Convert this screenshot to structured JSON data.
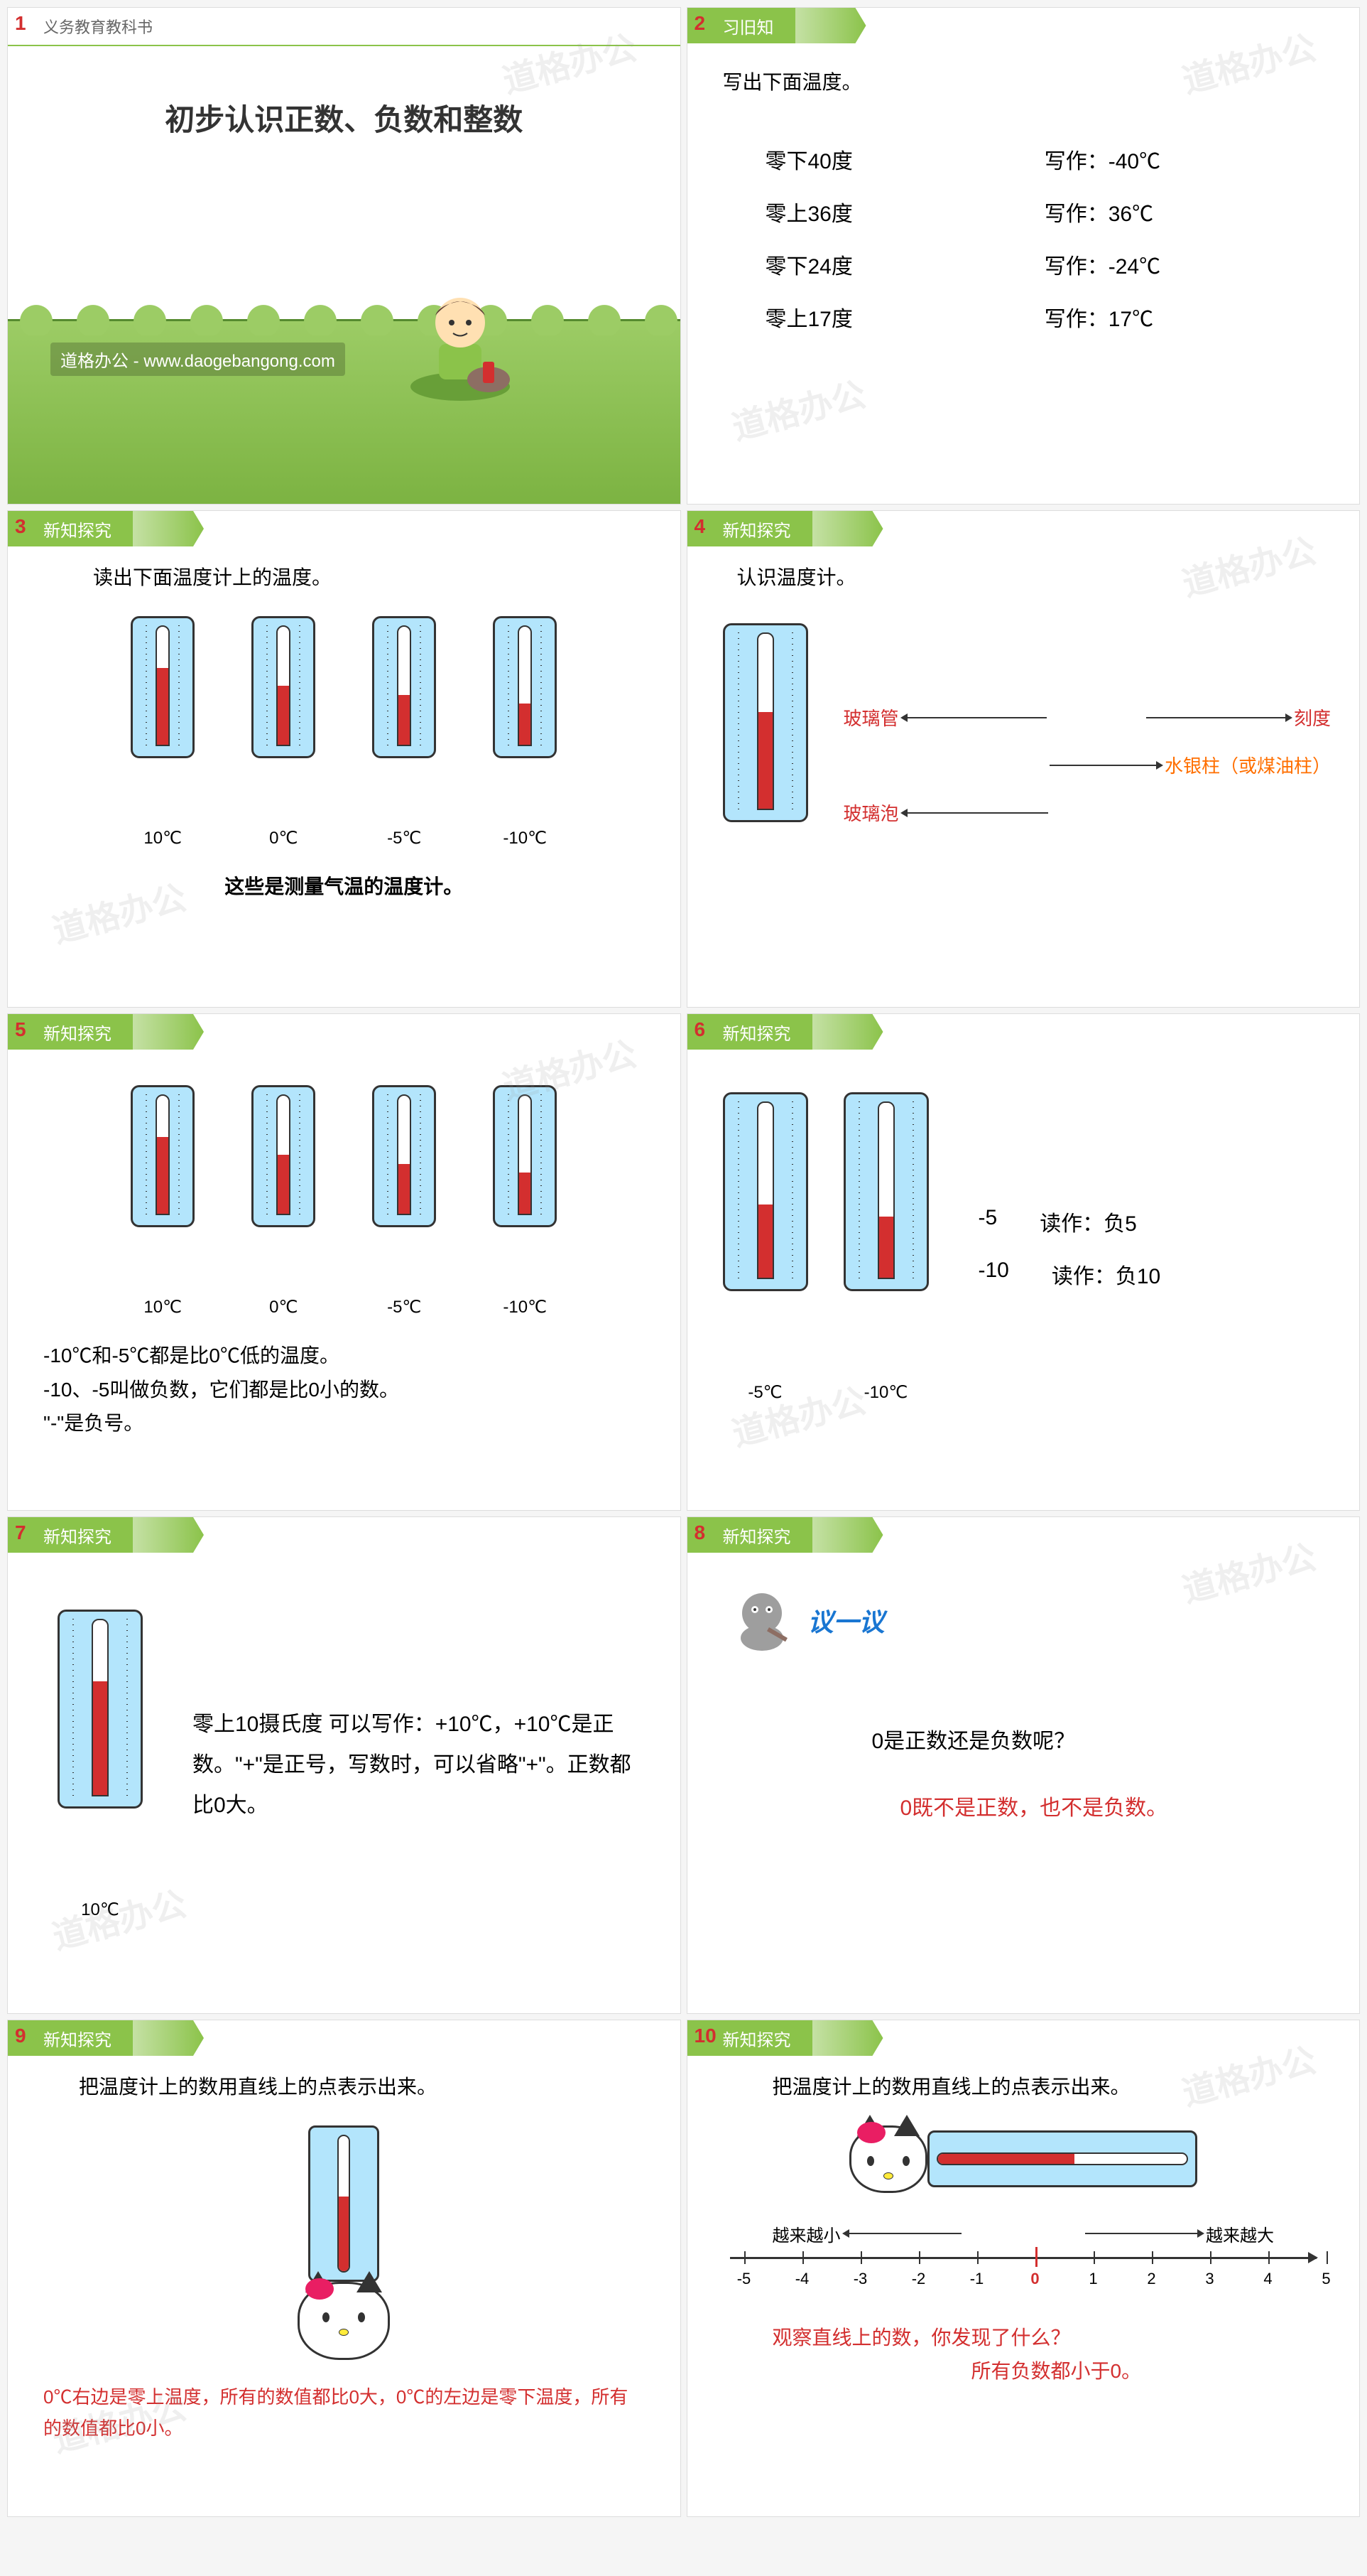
{
  "slide1": {
    "num": "1",
    "header": "义务教育教科书",
    "title": "初步认识正数、负数和整数",
    "url": "道格办公 - www.daogebangong.com"
  },
  "slide2": {
    "num": "2",
    "header": "习旧知",
    "title": "写出下面温度。",
    "rows": [
      {
        "desc": "零下40度",
        "ans": "写作：-40℃"
      },
      {
        "desc": "零上36度",
        "ans": "写作：36℃"
      },
      {
        "desc": "零下24度",
        "ans": "写作：-24℃"
      },
      {
        "desc": "零上17度",
        "ans": "写作：17℃"
      }
    ]
  },
  "slide3": {
    "num": "3",
    "header": "新知探究",
    "title": "读出下面温度计上的温度。",
    "thermos": [
      {
        "label": "10℃",
        "fill_pct": 65
      },
      {
        "label": "0℃",
        "fill_pct": 50
      },
      {
        "label": "-5℃",
        "fill_pct": 42
      },
      {
        "label": "-10℃",
        "fill_pct": 35
      }
    ],
    "caption": "这些是测量气温的温度计。"
  },
  "slide4": {
    "num": "4",
    "header": "新知探究",
    "title": "认识温度计。",
    "labels": {
      "tube": "玻璃管",
      "scale": "刻度",
      "bulb": "玻璃泡",
      "column": "水银柱（或煤油柱）"
    },
    "thermo": {
      "fill_pct": 55
    }
  },
  "slide5": {
    "num": "5",
    "header": "新知探究",
    "thermos": [
      {
        "label": "10℃",
        "fill_pct": 65
      },
      {
        "label": "0℃",
        "fill_pct": 50
      },
      {
        "label": "-5℃",
        "fill_pct": 42
      },
      {
        "label": "-10℃",
        "fill_pct": 35
      }
    ],
    "lines": [
      "-10℃和-5℃都是比0℃低的温度。",
      "-10、-5叫做负数，它们都是比0小的数。",
      "\"-\"是负号。"
    ]
  },
  "slide6": {
    "num": "6",
    "header": "新知探究",
    "thermos": [
      {
        "label": "-5℃",
        "fill_pct": 42
      },
      {
        "label": "-10℃",
        "fill_pct": 35
      }
    ],
    "readings": [
      {
        "num": "-5",
        "read": "读作：负5"
      },
      {
        "num": "-10",
        "read": "读作：负10"
      }
    ]
  },
  "slide7": {
    "num": "7",
    "header": "新知探究",
    "thermo": {
      "label": "10℃",
      "fill_pct": 65
    },
    "text": "零上10摄氏度  可以写作：+10℃，+10℃是正数。\"+\"是正号，写数时，可以省略\"+\"。正数都比0大。"
  },
  "slide8": {
    "num": "8",
    "header": "新知探究",
    "discuss": "议一议",
    "question": "0是正数还是负数呢？",
    "answer": "0既不是正数，也不是负数。"
  },
  "slide9": {
    "num": "9",
    "header": "新知探究",
    "title": "把温度计上的数用直线上的点表示出来。",
    "thermo": {
      "fill_pct": 55
    },
    "note": "0℃右边是零上温度，所有的数值都比0大，0℃的左边是零下温度，所有的数值都比0小。"
  },
  "slide10": {
    "num": "10",
    "header": "新知探究",
    "title": "把温度计上的数用直线上的点表示出来。",
    "thermo": {
      "fill_pct": 55
    },
    "left_label": "越来越小",
    "right_label": "越来越大",
    "ticks": [
      "-5",
      "-4",
      "-3",
      "-2",
      "-1",
      "0",
      "1",
      "2",
      "3",
      "4",
      "5"
    ],
    "q": "观察直线上的数，你发现了什么？",
    "a": "所有负数都小于0。"
  },
  "colors": {
    "green": "#8bc34a",
    "red": "#d32f2f",
    "orange": "#ff6f00",
    "thermo_bg": "#b3e5fc",
    "bear": "#fff9c4"
  },
  "watermark": "道格办公"
}
